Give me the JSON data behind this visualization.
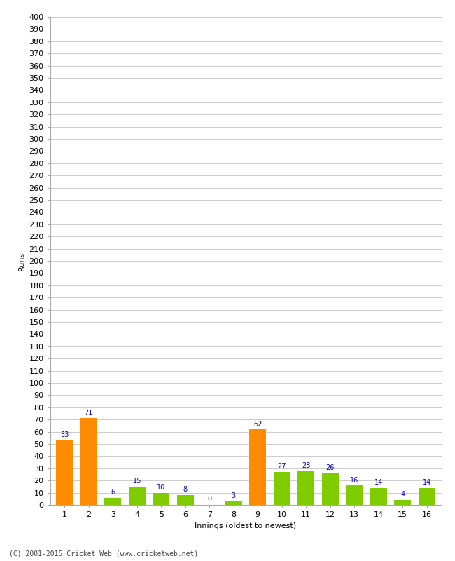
{
  "xlabel": "Innings (oldest to newest)",
  "ylabel": "Runs",
  "categories": [
    1,
    2,
    3,
    4,
    5,
    6,
    7,
    8,
    9,
    10,
    11,
    12,
    13,
    14,
    15,
    16
  ],
  "values": [
    53,
    71,
    6,
    15,
    10,
    8,
    0,
    3,
    62,
    27,
    28,
    26,
    16,
    14,
    4,
    14
  ],
  "bar_colors": [
    "#FF8C00",
    "#FF8C00",
    "#7FCC00",
    "#7FCC00",
    "#7FCC00",
    "#7FCC00",
    "#7FCC00",
    "#7FCC00",
    "#FF8C00",
    "#7FCC00",
    "#7FCC00",
    "#7FCC00",
    "#7FCC00",
    "#7FCC00",
    "#7FCC00",
    "#7FCC00"
  ],
  "ylim": [
    0,
    400
  ],
  "yticks": [
    0,
    10,
    20,
    30,
    40,
    50,
    60,
    70,
    80,
    90,
    100,
    110,
    120,
    130,
    140,
    150,
    160,
    170,
    180,
    190,
    200,
    210,
    220,
    230,
    240,
    250,
    260,
    270,
    280,
    290,
    300,
    310,
    320,
    330,
    340,
    350,
    360,
    370,
    380,
    390,
    400
  ],
  "label_color": "#0000CC",
  "label_fontsize": 7,
  "axis_fontsize": 8,
  "footer": "(C) 2001-2015 Cricket Web (www.cricketweb.net)",
  "background_color": "#FFFFFF",
  "grid_color": "#CCCCCC"
}
